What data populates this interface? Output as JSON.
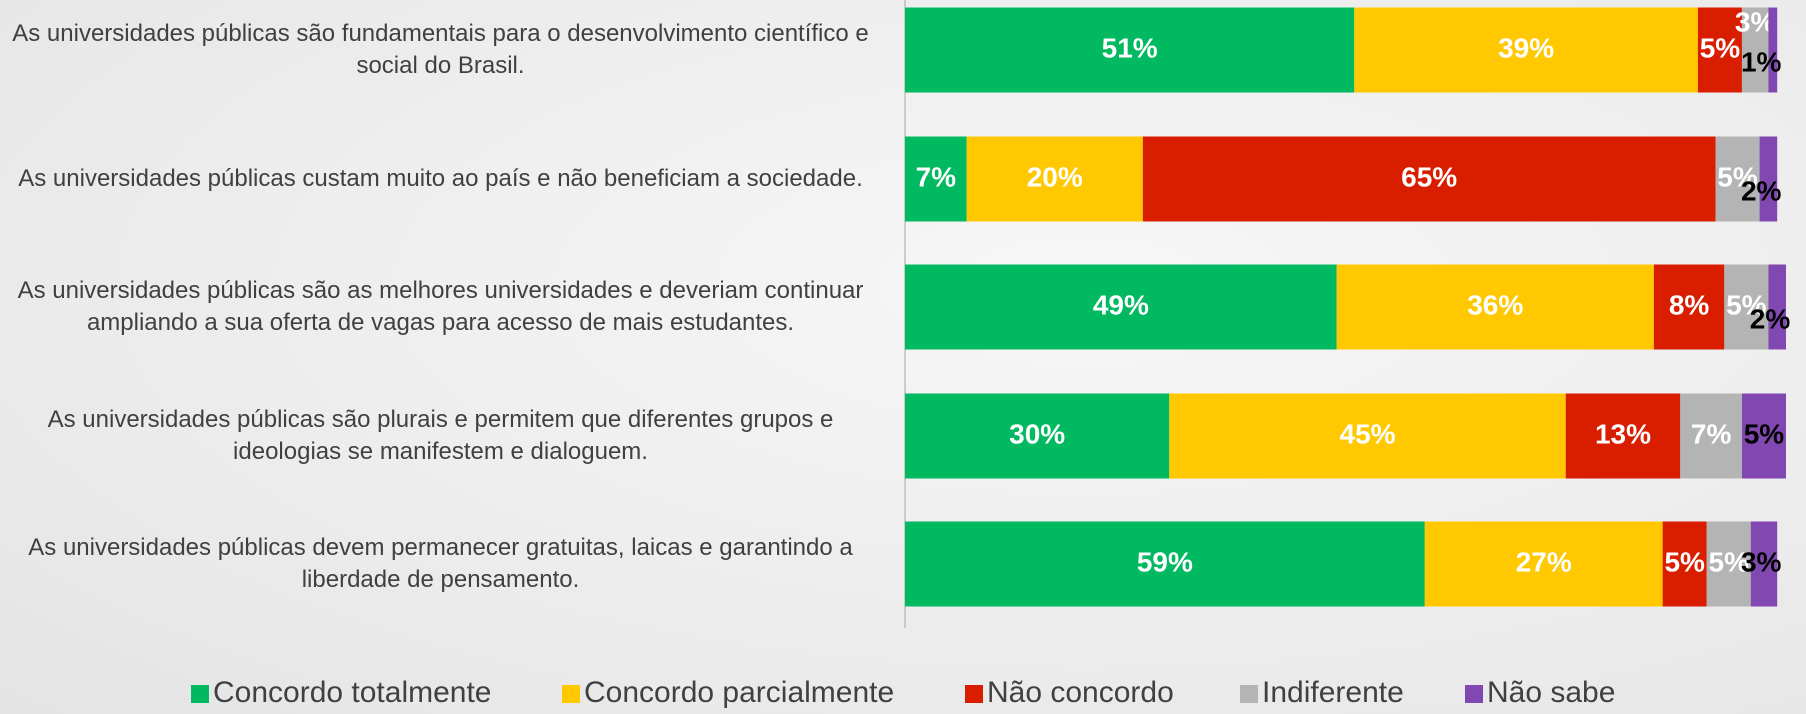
{
  "chart_data": {
    "type": "stacked_barh",
    "categories": [
      "As universidades públicas são fundamentais para o desenvolvimento científico e social do Brasil.",
      "As universidades públicas custam muito ao país e não beneficiam a sociedade.",
      "As universidades públicas são as melhores universidades e deveriam continuar ampliando a sua oferta de vagas para acesso de mais estudantes.",
      "As universidades públicas são plurais e permitem que diferentes grupos e ideologias se manifestem e dialoguem.",
      "As universidades públicas devem permanecer gratuitas, laicas e garantindo a liberdade de pensamento."
    ],
    "series": [
      {
        "name": "Concordo totalmente",
        "color": "#00b960",
        "label_color": "#ffffff",
        "values": [
          51,
          7,
          49,
          30,
          59
        ],
        "value_labels": [
          "51%",
          "7%",
          "49%",
          "30%",
          "59%"
        ]
      },
      {
        "name": "Concordo parcialmente",
        "color": "#ffc800",
        "label_color": "#ffffff",
        "values": [
          39,
          20,
          36,
          45,
          27
        ],
        "value_labels": [
          "39%",
          "20%",
          "36%",
          "45%",
          "27%"
        ]
      },
      {
        "name": "Não concordo",
        "color": "#d91e00",
        "label_color": "#ffffff",
        "values": [
          5,
          65,
          8,
          13,
          5
        ],
        "value_labels": [
          "5%",
          "65%",
          "8%",
          "13%",
          "5%"
        ]
      },
      {
        "name": "Indiferente",
        "color": "#b4b4b4",
        "label_color": "#ffffff",
        "values": [
          3,
          5,
          5,
          7,
          5
        ],
        "value_labels": [
          "3%",
          "5%",
          "5%",
          "7%",
          "5%"
        ]
      },
      {
        "name": "Não sabe",
        "color": "#8048b0",
        "label_color": "#000000",
        "values": [
          1,
          2,
          2,
          5,
          3
        ],
        "value_labels": [
          "1%",
          "2%",
          "2%",
          "5%",
          "3%"
        ]
      }
    ],
    "xlim": [
      0,
      100
    ],
    "legend": "bottom"
  }
}
